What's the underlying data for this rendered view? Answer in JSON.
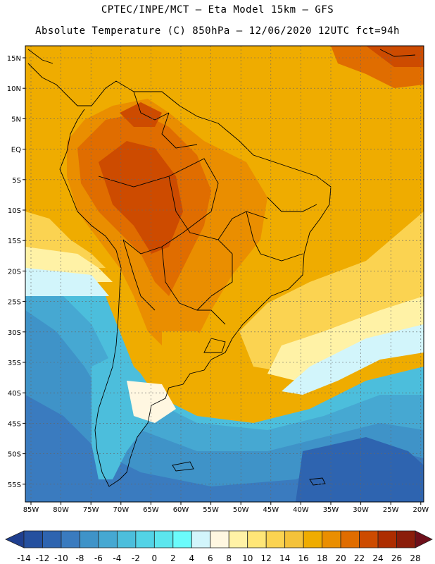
{
  "header": {
    "line1": "CPTEC/INPE/MCT –  Eta Model 15km – GFS",
    "line2": "Absolute Temperature (C) 850hPa – 12/06/2020 12UTC fct=94h"
  },
  "map": {
    "lat_labels": [
      "15N",
      "10N",
      "5N",
      "EQ",
      "5S",
      "10S",
      "15S",
      "20S",
      "25S",
      "30S",
      "35S",
      "40S",
      "45S",
      "50S",
      "55S"
    ],
    "lon_labels": [
      "85W",
      "80W",
      "75W",
      "70W",
      "65W",
      "60W",
      "55W",
      "50W",
      "45W",
      "40W",
      "35W",
      "30W",
      "25W",
      "20W"
    ]
  },
  "colorbar": {
    "labels": [
      "-14",
      "-12",
      "-10",
      "-8",
      "-6",
      "-4",
      "-2",
      "0",
      "2",
      "4",
      "6",
      "8",
      "10",
      "12",
      "14",
      "16",
      "18",
      "20",
      "22",
      "24",
      "26",
      "28"
    ],
    "colors": [
      "#1f3f8f",
      "#25509f",
      "#2e64b0",
      "#3a7bbf",
      "#3f93c8",
      "#46a8d2",
      "#4cbedc",
      "#53d3e6",
      "#5ce6ee",
      "#6bfbfb",
      "#d2f5fb",
      "#fff7e1",
      "#fff2a6",
      "#ffe677",
      "#fbd351",
      "#f4c23a",
      "#efac00",
      "#ea8e00",
      "#e06d00",
      "#cd4b00",
      "#ad2d00",
      "#8b1d0a",
      "#6e0f1a"
    ]
  }
}
